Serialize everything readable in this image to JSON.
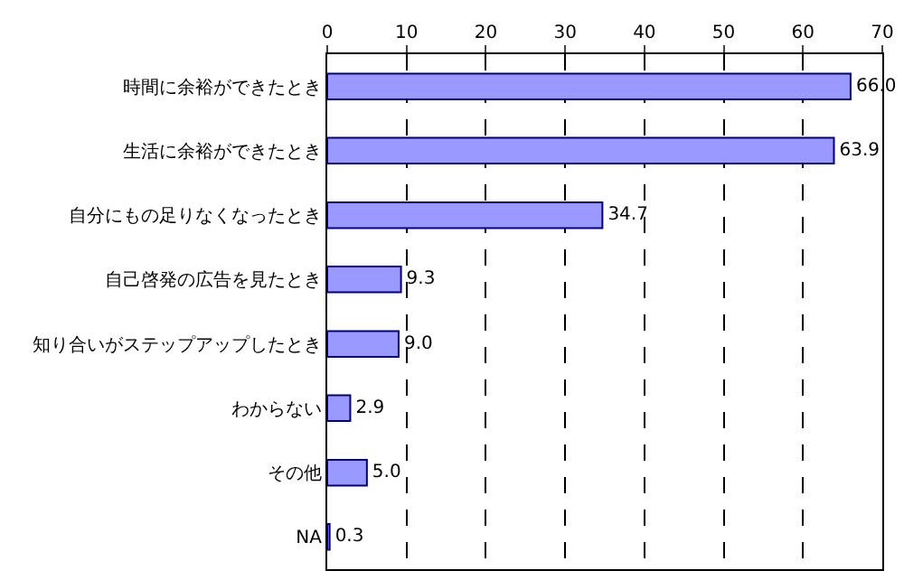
{
  "chart_data": {
    "type": "bar",
    "orientation": "horizontal",
    "categories": [
      "時間に余裕ができたとき",
      "生活に余裕ができたとき",
      "自分にもの足りなくなったとき",
      "自己啓発の広告を見たとき",
      "知り合いがステップアップしたとき",
      "わからない",
      "その他",
      "NA"
    ],
    "values": [
      66.0,
      63.9,
      34.7,
      9.3,
      9.0,
      2.9,
      5.0,
      0.3
    ],
    "value_labels": [
      "66.0",
      "63.9",
      "34.7",
      "9.3",
      "9.0",
      "2.9",
      "5.0",
      "0.3"
    ],
    "color": "#9999ff",
    "xlim": [
      0,
      70
    ],
    "xticks": [
      0,
      10,
      20,
      30,
      40,
      50,
      60,
      70
    ],
    "grid": "x",
    "legend": false
  }
}
